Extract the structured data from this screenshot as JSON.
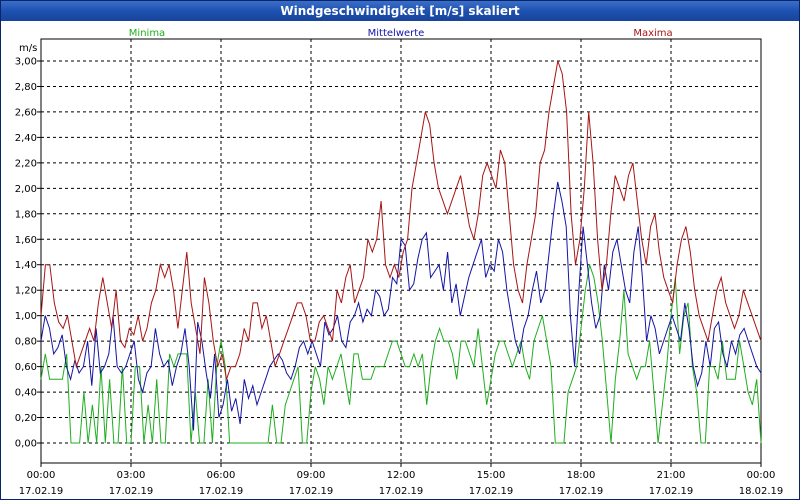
{
  "window": {
    "title": "Windgeschwindigkeit [m/s] skaliert"
  },
  "colors": {
    "min": "#1fae1f",
    "mean": "#1414a8",
    "max": "#a81414",
    "grid": "#000000",
    "axis": "#000000"
  },
  "chart_data": {
    "type": "line",
    "title": "Windgeschwindigkeit [m/s] skaliert",
    "ylabel": "m/s",
    "ylim": [
      0,
      3.0
    ],
    "xlim_hours": [
      0,
      24
    ],
    "y_ticks": [
      "0,00",
      "0,20",
      "0,40",
      "0,60",
      "0,80",
      "1,00",
      "1,20",
      "1,40",
      "1,60",
      "1,80",
      "2,00",
      "2,20",
      "2,40",
      "2,60",
      "2,80",
      "3,00"
    ],
    "x_ticks": [
      {
        "time": "00:00",
        "date": "17.02.19"
      },
      {
        "time": "03:00",
        "date": "17.02.19"
      },
      {
        "time": "06:00",
        "date": "17.02.19"
      },
      {
        "time": "09:00",
        "date": "17.02.19"
      },
      {
        "time": "12:00",
        "date": "17.02.19"
      },
      {
        "time": "15:00",
        "date": "17.02.19"
      },
      {
        "time": "18:00",
        "date": "17.02.19"
      },
      {
        "time": "21:00",
        "date": "17.02.19"
      },
      {
        "time": "00:00",
        "date": "18.02.19"
      }
    ],
    "interval_minutes": 10,
    "series": [
      {
        "name": "Minima",
        "key": "min",
        "values": [
          0.5,
          0.7,
          0.5,
          0.5,
          0.5,
          0.5,
          0.7,
          0.0,
          0.0,
          0.0,
          0.4,
          0.0,
          0.3,
          0.0,
          0.6,
          0.0,
          0.5,
          0.0,
          0.0,
          0.6,
          0.0,
          0.0,
          0.6,
          0.6,
          0.0,
          0.3,
          0.0,
          0.5,
          0.0,
          0.0,
          0.7,
          0.6,
          0.7,
          0.7,
          0.7,
          0.0,
          0.4,
          0.0,
          0.0,
          0.5,
          0.0,
          0.6,
          0.8,
          0.6,
          0.0,
          0.0,
          0.0,
          0.0,
          0.0,
          0.0,
          0.0,
          0.0,
          0.0,
          0.0,
          0.3,
          0.0,
          0.0,
          0.3,
          0.4,
          0.5,
          0.6,
          0.0,
          0.0,
          0.4,
          0.6,
          0.5,
          0.3,
          0.6,
          0.5,
          0.6,
          0.7,
          0.5,
          0.3,
          0.7,
          0.7,
          0.5,
          0.5,
          0.5,
          0.6,
          0.6,
          0.6,
          0.7,
          0.8,
          0.8,
          0.7,
          0.6,
          0.6,
          0.7,
          0.6,
          0.7,
          0.3,
          0.6,
          0.8,
          0.9,
          0.8,
          0.8,
          0.7,
          0.5,
          0.8,
          0.8,
          0.7,
          0.6,
          0.9,
          0.6,
          0.3,
          0.5,
          0.7,
          0.8,
          0.8,
          0.7,
          0.6,
          0.7,
          0.8,
          0.6,
          0.5,
          0.8,
          0.9,
          1.0,
          0.8,
          0.6,
          0.0,
          0.0,
          0.0,
          0.4,
          0.5,
          0.6,
          0.9,
          1.2,
          1.4,
          1.3,
          1.1,
          0.8,
          0.4,
          0.0,
          0.5,
          0.8,
          1.2,
          0.7,
          0.6,
          0.5,
          0.6,
          0.6,
          0.8,
          0.4,
          0.0,
          0.3,
          0.6,
          1.0,
          1.3,
          0.7,
          1.0,
          1.1,
          0.6,
          0.4,
          0.0,
          0.0,
          0.6,
          0.6,
          0.5,
          0.8,
          0.5,
          0.5,
          0.5,
          0.8,
          0.6,
          0.4,
          0.3,
          0.5,
          0.0
        ]
      },
      {
        "name": "Mittelwerte",
        "key": "mean",
        "values": [
          0.8,
          1.0,
          0.9,
          0.7,
          0.75,
          0.85,
          0.6,
          0.5,
          0.65,
          0.55,
          0.6,
          0.8,
          0.45,
          0.9,
          0.55,
          0.6,
          0.7,
          1.0,
          0.6,
          0.55,
          0.6,
          0.7,
          0.8,
          0.5,
          0.4,
          0.55,
          0.6,
          0.9,
          0.7,
          0.6,
          0.65,
          0.45,
          0.6,
          0.7,
          0.9,
          0.6,
          0.1,
          0.95,
          0.8,
          0.55,
          0.35,
          0.7,
          0.2,
          0.3,
          0.5,
          0.25,
          0.35,
          0.15,
          0.5,
          0.35,
          0.45,
          0.3,
          0.4,
          0.5,
          0.6,
          0.65,
          0.7,
          0.65,
          0.55,
          0.5,
          0.6,
          0.75,
          0.8,
          0.7,
          0.8,
          0.7,
          0.6,
          0.95,
          0.85,
          0.9,
          1.0,
          0.8,
          0.75,
          0.95,
          1.0,
          1.1,
          0.95,
          1.05,
          1.0,
          1.2,
          1.15,
          1.0,
          1.05,
          1.3,
          1.25,
          1.6,
          1.55,
          1.2,
          1.25,
          1.45,
          1.6,
          1.65,
          1.3,
          1.35,
          1.4,
          1.2,
          1.5,
          1.1,
          1.25,
          1.0,
          1.15,
          1.3,
          1.4,
          1.5,
          1.6,
          1.3,
          1.4,
          1.35,
          1.6,
          1.5,
          1.2,
          1.0,
          0.8,
          0.7,
          0.9,
          1.0,
          1.2,
          1.35,
          1.1,
          1.2,
          1.5,
          1.8,
          2.05,
          1.9,
          1.7,
          1.0,
          0.6,
          1.2,
          1.7,
          1.4,
          1.1,
          0.9,
          1.0,
          1.4,
          1.2,
          1.5,
          1.6,
          1.4,
          1.2,
          1.1,
          1.5,
          1.7,
          1.3,
          0.8,
          1.0,
          0.9,
          0.7,
          0.8,
          0.9,
          1.0,
          0.9,
          0.8,
          1.1,
          0.9,
          0.6,
          0.45,
          0.55,
          0.8,
          0.6,
          0.9,
          0.95,
          0.7,
          0.6,
          0.8,
          0.7,
          0.85,
          0.9,
          0.8,
          0.7,
          0.6,
          0.55
        ]
      },
      {
        "name": "Maxima",
        "key": "max",
        "values": [
          1.0,
          1.4,
          1.4,
          1.1,
          0.95,
          0.9,
          1.0,
          0.8,
          0.6,
          0.7,
          0.8,
          0.9,
          0.8,
          1.1,
          1.3,
          1.1,
          0.9,
          1.2,
          0.8,
          0.75,
          0.9,
          0.85,
          1.0,
          0.8,
          0.9,
          1.1,
          1.2,
          1.4,
          1.3,
          1.4,
          1.2,
          0.9,
          1.2,
          1.5,
          1.1,
          0.9,
          0.7,
          1.3,
          1.1,
          0.8,
          0.6,
          0.7,
          0.5,
          0.6,
          0.6,
          0.7,
          0.9,
          0.8,
          1.1,
          1.1,
          0.9,
          1.0,
          0.8,
          0.6,
          0.7,
          0.8,
          0.9,
          1.0,
          1.1,
          1.1,
          1.0,
          0.8,
          0.8,
          0.95,
          1.0,
          0.9,
          0.8,
          1.2,
          1.1,
          1.3,
          1.4,
          1.1,
          1.2,
          1.3,
          1.6,
          1.5,
          1.6,
          1.9,
          1.4,
          1.3,
          1.4,
          1.3,
          1.5,
          1.6,
          2.0,
          2.2,
          2.4,
          2.6,
          2.5,
          2.2,
          2.0,
          1.9,
          1.8,
          1.9,
          2.0,
          2.1,
          1.9,
          1.7,
          1.6,
          1.8,
          2.1,
          2.2,
          2.1,
          2.0,
          2.3,
          2.2,
          1.8,
          1.4,
          1.2,
          1.1,
          1.4,
          1.6,
          1.8,
          2.2,
          2.3,
          2.6,
          2.8,
          3.0,
          2.9,
          2.6,
          1.8,
          1.4,
          1.6,
          2.0,
          2.6,
          2.2,
          1.6,
          1.2,
          1.4,
          1.8,
          2.1,
          2.0,
          1.9,
          2.1,
          2.2,
          1.9,
          1.6,
          1.4,
          1.7,
          1.8,
          1.5,
          1.3,
          1.2,
          1.1,
          1.4,
          1.6,
          1.7,
          1.5,
          1.2,
          1.0,
          0.9,
          0.8,
          1.0,
          1.2,
          1.3,
          1.1,
          1.0,
          0.9,
          1.0,
          1.2,
          1.1,
          1.0,
          0.9,
          0.8
        ]
      }
    ]
  }
}
